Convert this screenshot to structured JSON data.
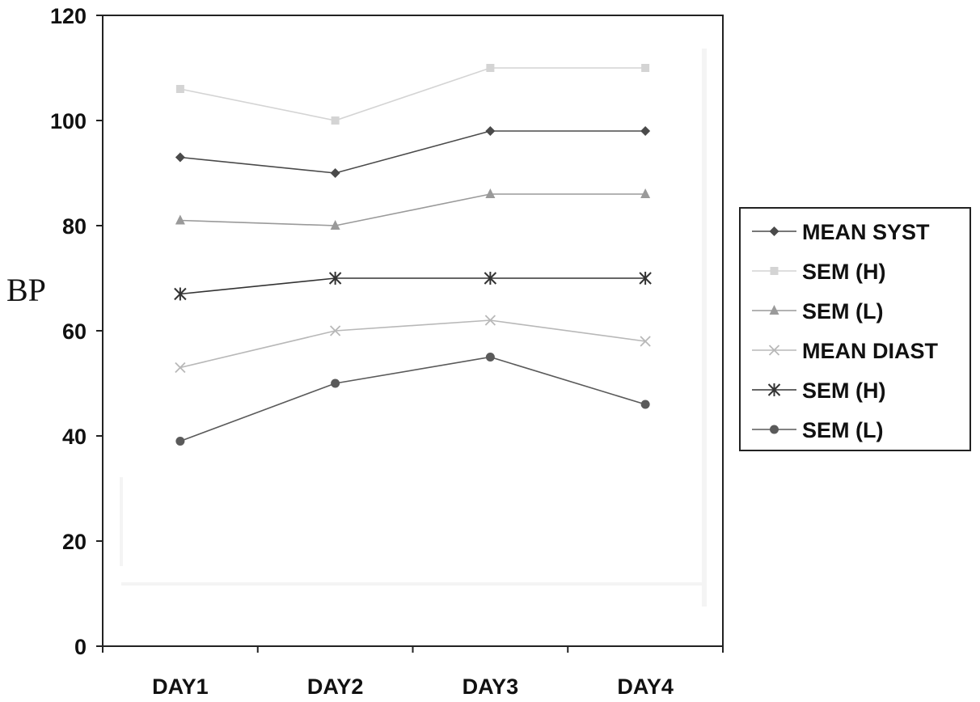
{
  "chart_data": {
    "type": "line",
    "categories": [
      "DAY1",
      "DAY2",
      "DAY3",
      "DAY4"
    ],
    "ylabel": "BP",
    "xlabel": "",
    "ylim": [
      0,
      120
    ],
    "yticks": [
      0,
      20,
      40,
      60,
      80,
      100,
      120
    ],
    "grid": false,
    "legend_position": "right",
    "series": [
      {
        "name": "MEAN SYST",
        "values": [
          93,
          90,
          98,
          98
        ],
        "color": "#4a4a4a",
        "marker": "diamond"
      },
      {
        "name": "SEM (H)",
        "values": [
          106,
          100,
          110,
          110
        ],
        "color": "#d4d4d4",
        "marker": "square"
      },
      {
        "name": "SEM (L)",
        "values": [
          81,
          80,
          86,
          86
        ],
        "color": "#9a9a9a",
        "marker": "triangle"
      },
      {
        "name": "MEAN DIAST",
        "values": [
          53,
          60,
          62,
          58
        ],
        "color": "#b8b8b8",
        "marker": "x"
      },
      {
        "name": "SEM (H)",
        "values": [
          67,
          70,
          70,
          70
        ],
        "color": "#333333",
        "marker": "star"
      },
      {
        "name": "SEM (L)",
        "values": [
          39,
          50,
          55,
          46
        ],
        "color": "#5a5a5a",
        "marker": "circle"
      }
    ]
  }
}
